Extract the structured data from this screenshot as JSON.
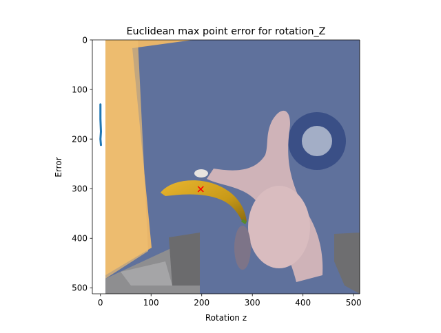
{
  "chart_data": {
    "type": "image_plot",
    "title": "Euclidean max point error for rotation_Z",
    "xlabel": "Rotation z",
    "ylabel": "Error",
    "xlim": [
      -16,
      512
    ],
    "ylim": [
      512,
      0
    ],
    "x_ticks": [
      0,
      100,
      200,
      300,
      400,
      500
    ],
    "y_ticks": [
      0,
      100,
      200,
      300,
      400,
      500
    ],
    "background_image": {
      "x_range": [
        0,
        512
      ],
      "y_range": [
        0,
        512
      ],
      "description": "camera frame with a banana on a blue/pink surface"
    },
    "series": [
      {
        "name": "error",
        "style": "line",
        "color": "#1f77b4",
        "points": [
          [
            0,
            130
          ],
          [
            0,
            160
          ],
          [
            1,
            185
          ],
          [
            0,
            200
          ],
          [
            1,
            212
          ]
        ]
      },
      {
        "name": "marker",
        "style": "x",
        "color": "#ff0000",
        "points": [
          [
            198,
            301
          ]
        ]
      }
    ]
  }
}
